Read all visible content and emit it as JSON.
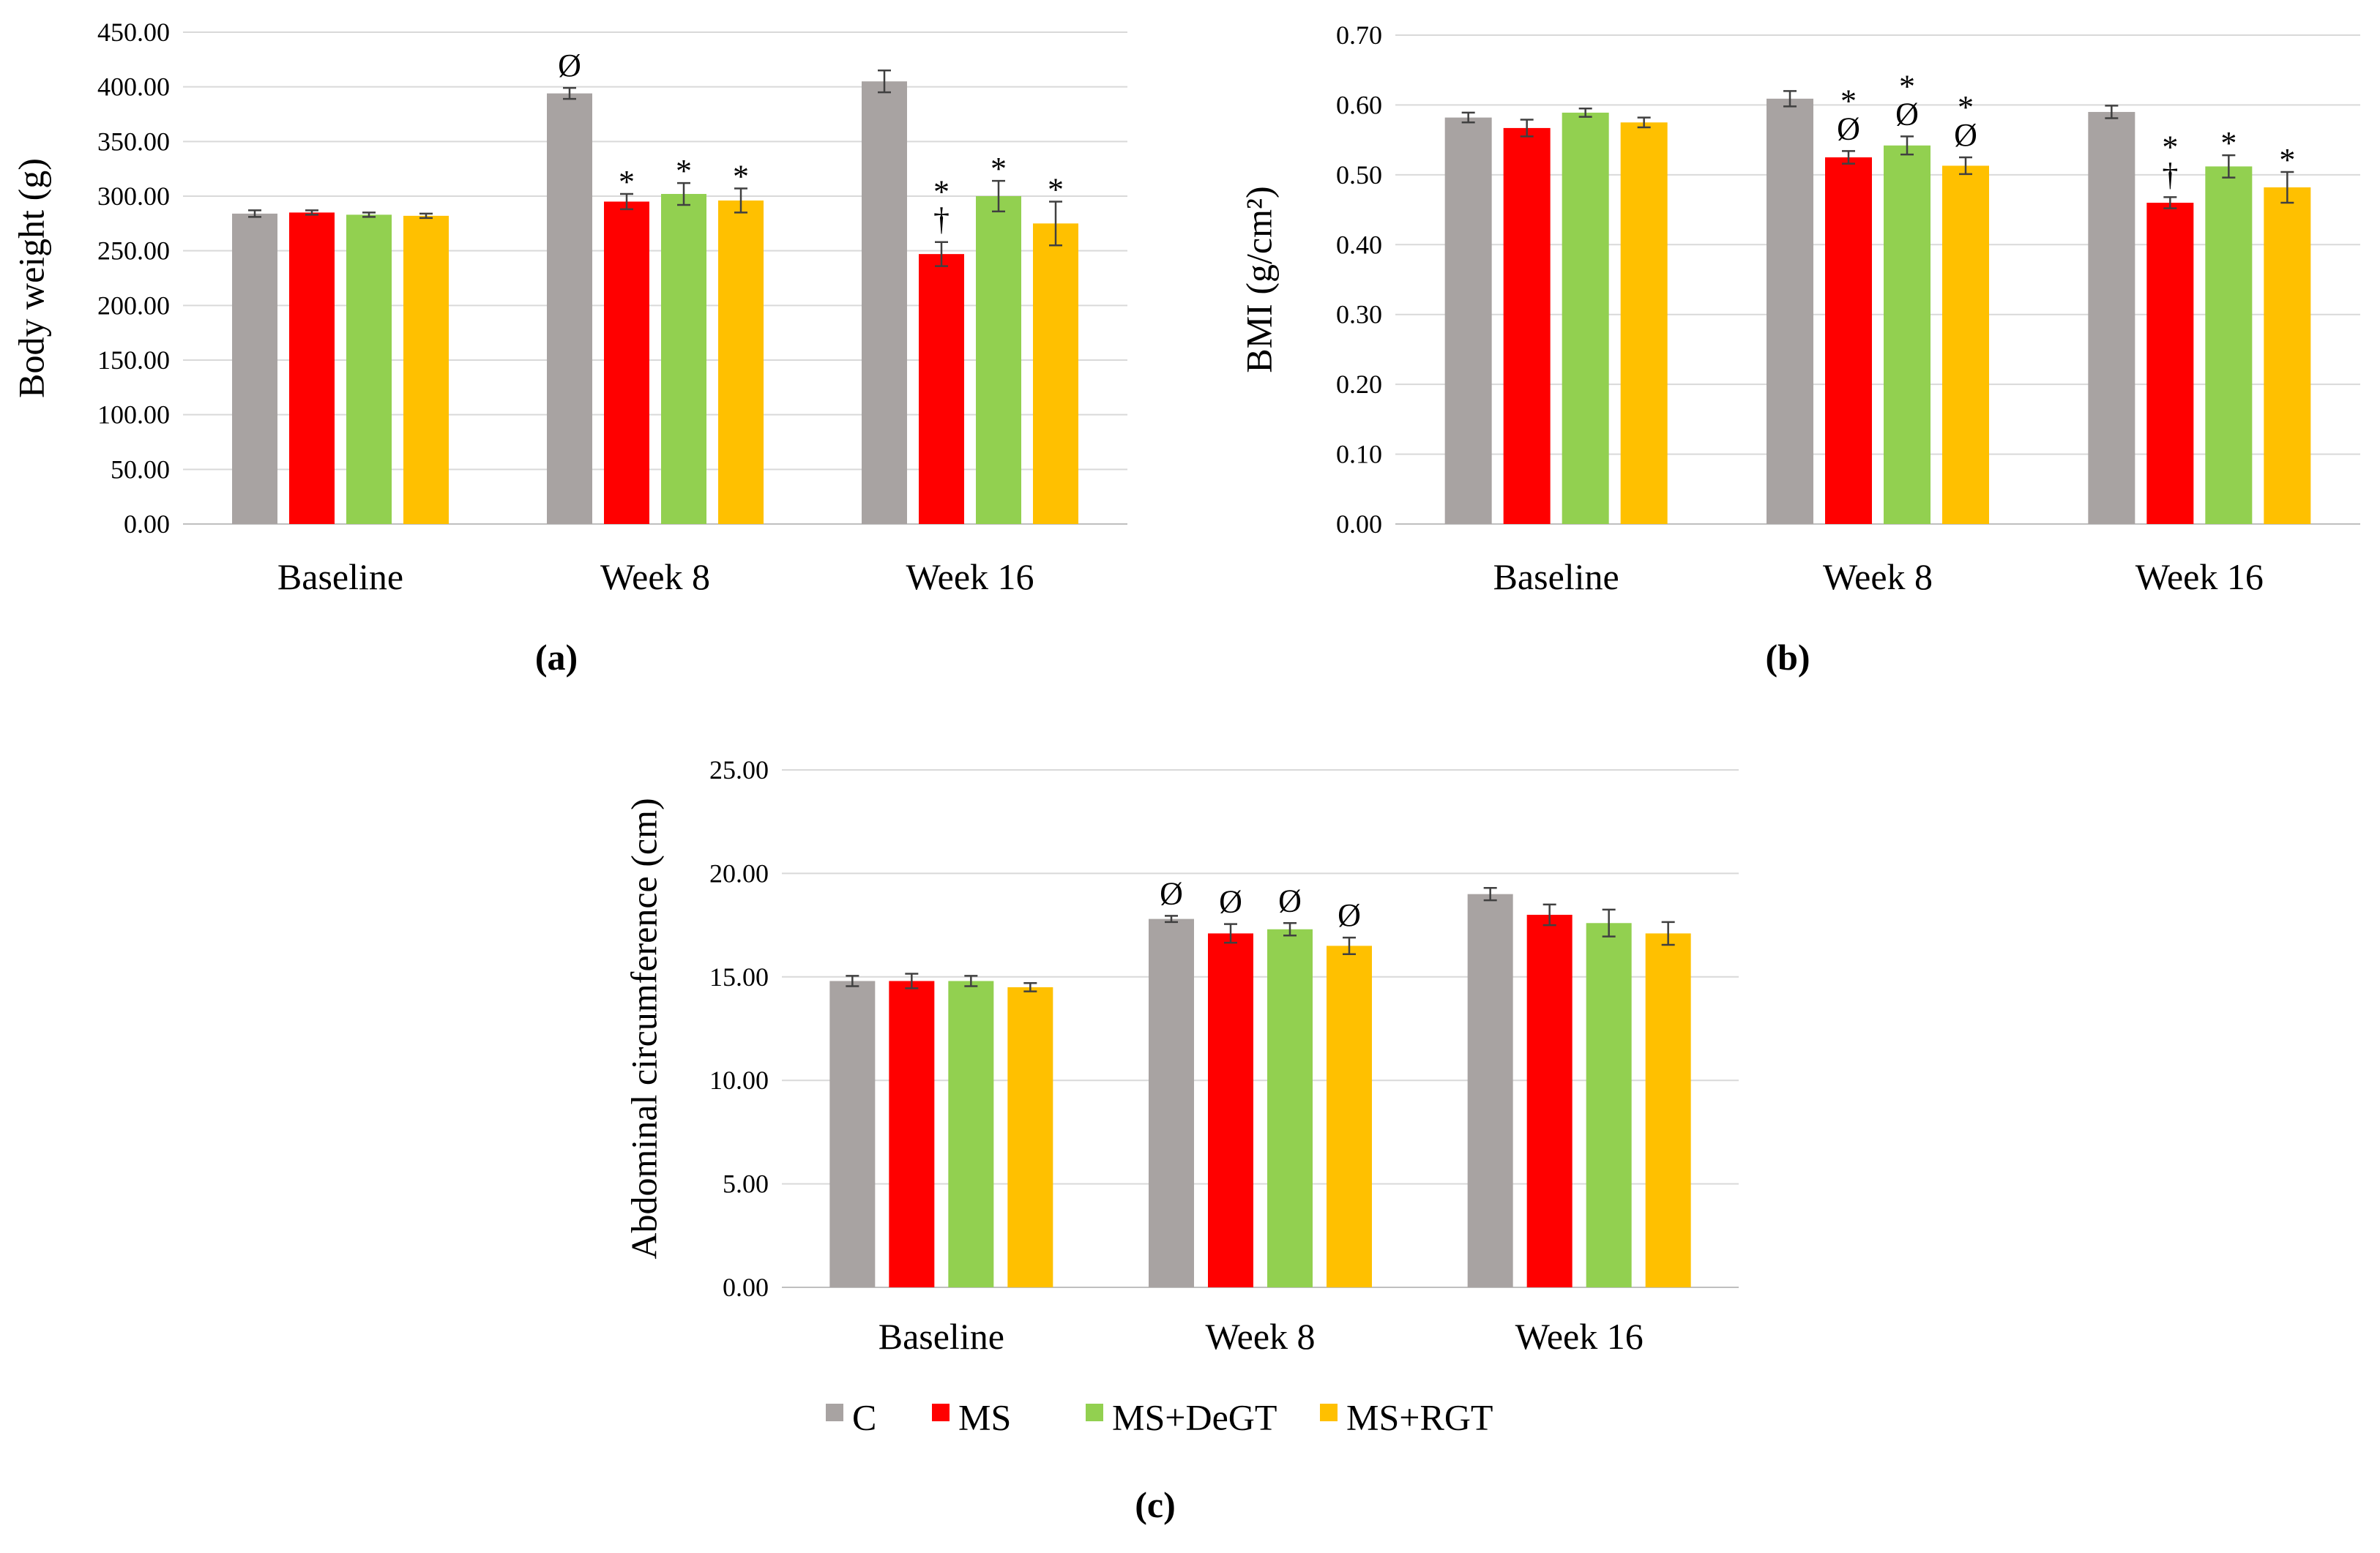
{
  "panels": {
    "a": {
      "label": "(a)"
    },
    "b": {
      "label": "(b)"
    },
    "c": {
      "label": "(c)"
    }
  },
  "legend": [
    "C",
    "MS",
    "MS+DeGT",
    "MS+RGT"
  ],
  "colors": {
    "C": "#a8a3a2",
    "MS": "#ff0000",
    "MS+DeGT": "#92d050",
    "MS+RGT": "#ffc000",
    "grid": "#d9d9d9",
    "axis": "#bfbfbf",
    "error": "#404040"
  },
  "chart_data": [
    {
      "id": "a",
      "type": "bar",
      "title": "",
      "xlabel": "",
      "ylabel": "Body weight (g)",
      "ylim": [
        0,
        450
      ],
      "ystep": 50,
      "decimals": 2,
      "grid": true,
      "categories": [
        "Baseline",
        "Week 8",
        "Week 16"
      ],
      "series": [
        {
          "name": "C",
          "values": [
            284,
            394,
            405
          ],
          "errors": [
            3,
            5,
            10
          ]
        },
        {
          "name": "MS",
          "values": [
            285,
            295,
            247
          ],
          "errors": [
            2,
            7,
            11
          ]
        },
        {
          "name": "MS+DeGT",
          "values": [
            283,
            302,
            300
          ],
          "errors": [
            2,
            10,
            14
          ]
        },
        {
          "name": "MS+RGT",
          "values": [
            282,
            296,
            275
          ],
          "errors": [
            2,
            11,
            20
          ]
        }
      ],
      "annotations": [
        [
          [],
          [],
          [],
          []
        ],
        [
          [
            "Ø"
          ],
          [
            "*"
          ],
          [
            "*"
          ],
          [
            "*"
          ]
        ],
        [
          [],
          [
            "*",
            "†"
          ],
          [
            "*"
          ],
          [
            "*"
          ]
        ]
      ]
    },
    {
      "id": "b",
      "type": "bar",
      "title": "",
      "xlabel": "",
      "ylabel": "BMI (g/cm²)",
      "ylim": [
        0,
        0.7
      ],
      "ystep": 0.1,
      "decimals": 2,
      "grid": true,
      "categories": [
        "Baseline",
        "Week 8",
        "Week 16"
      ],
      "series": [
        {
          "name": "C",
          "values": [
            0.582,
            0.609,
            0.59
          ],
          "errors": [
            0.007,
            0.011,
            0.009
          ]
        },
        {
          "name": "MS",
          "values": [
            0.567,
            0.525,
            0.46
          ],
          "errors": [
            0.012,
            0.009,
            0.008
          ]
        },
        {
          "name": "MS+DeGT",
          "values": [
            0.589,
            0.542,
            0.512
          ],
          "errors": [
            0.006,
            0.013,
            0.016
          ]
        },
        {
          "name": "MS+RGT",
          "values": [
            0.575,
            0.513,
            0.482
          ],
          "errors": [
            0.007,
            0.012,
            0.022
          ]
        }
      ],
      "annotations": [
        [
          [],
          [],
          [],
          []
        ],
        [
          [],
          [
            "*",
            "Ø"
          ],
          [
            "*",
            "Ø"
          ],
          [
            "*",
            "Ø"
          ]
        ],
        [
          [],
          [
            "*",
            "†"
          ],
          [
            "*"
          ],
          [
            "*"
          ]
        ]
      ]
    },
    {
      "id": "c",
      "type": "bar",
      "title": "",
      "xlabel": "",
      "ylabel": "Abdominal circumference (cm)",
      "ylim": [
        0,
        25
      ],
      "ystep": 5,
      "decimals": 2,
      "grid": true,
      "categories": [
        "Baseline",
        "Week 8",
        "Week 16"
      ],
      "series": [
        {
          "name": "C",
          "values": [
            14.8,
            17.8,
            19.0
          ],
          "errors": [
            0.25,
            0.15,
            0.3
          ]
        },
        {
          "name": "MS",
          "values": [
            14.8,
            17.1,
            18.0
          ],
          "errors": [
            0.35,
            0.45,
            0.5
          ]
        },
        {
          "name": "MS+DeGT",
          "values": [
            14.8,
            17.3,
            17.6
          ],
          "errors": [
            0.25,
            0.3,
            0.65
          ]
        },
        {
          "name": "MS+RGT",
          "values": [
            14.5,
            16.5,
            17.1
          ],
          "errors": [
            0.2,
            0.4,
            0.55
          ]
        }
      ],
      "annotations": [
        [
          [],
          [],
          [],
          []
        ],
        [
          [
            "Ø"
          ],
          [
            "Ø"
          ],
          [
            "Ø"
          ],
          [
            "Ø"
          ]
        ],
        [
          [],
          [],
          [],
          []
        ]
      ],
      "legend_position": "bottom"
    }
  ]
}
